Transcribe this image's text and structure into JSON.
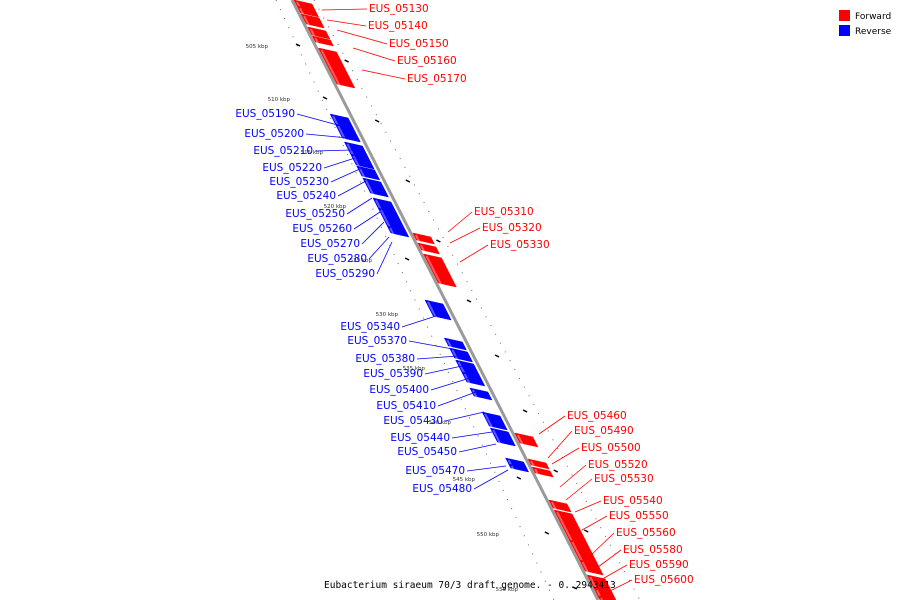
{
  "caption": "Eubacterium siraeum 70/3 draft genome. - 0..2943413",
  "legend": [
    {
      "label": "Forward",
      "color": "#ff0000"
    },
    {
      "label": "Reverse",
      "color": "#0000ff"
    }
  ],
  "colors": {
    "forward": "#ff0000",
    "reverse": "#0000ff",
    "axis": "#999999"
  },
  "ticks": [
    "505 kbp",
    "510 kbp",
    "515 kbp",
    "520 kbp",
    "525 kbp",
    "530 kbp",
    "535 kbp",
    "540 kbp",
    "545 kbp",
    "550 kbp",
    "555 kbp"
  ],
  "forward_genes": [
    "EUS_05130",
    "EUS_05140",
    "EUS_05150",
    "EUS_05160",
    "EUS_05170",
    "EUS_05310",
    "EUS_05320",
    "EUS_05330",
    "EUS_05460",
    "EUS_05490",
    "EUS_05500",
    "EUS_05520",
    "EUS_05530",
    "EUS_05540",
    "EUS_05550",
    "EUS_05560",
    "EUS_05580",
    "EUS_05590",
    "EUS_05600"
  ],
  "reverse_genes": [
    "EUS_05190",
    "EUS_05200",
    "EUS_05210",
    "EUS_05220",
    "EUS_05230",
    "EUS_05240",
    "EUS_05250",
    "EUS_05260",
    "EUS_05270",
    "EUS_05280",
    "EUS_05290",
    "EUS_05340",
    "EUS_05370",
    "EUS_05380",
    "EUS_05390",
    "EUS_05400",
    "EUS_05410",
    "EUS_05430",
    "EUS_05440",
    "EUS_05450",
    "EUS_05470",
    "EUS_05480"
  ]
}
